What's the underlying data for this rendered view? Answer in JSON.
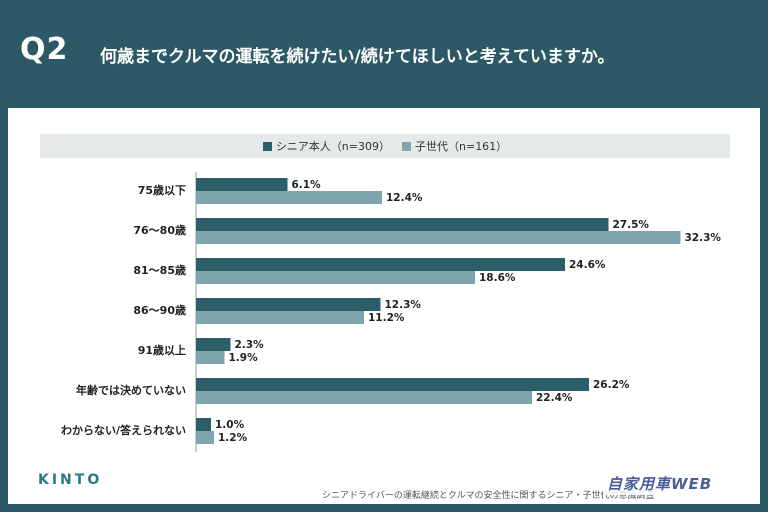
{
  "header": {
    "q_label": "Q2",
    "title": "何歳までクルマの運転を続けたい/続けてほしいと考えていますか。"
  },
  "colors": {
    "background": "#2c5965",
    "series1": "#2a5f67",
    "series2": "#7fa5ad"
  },
  "chart_data": {
    "type": "bar",
    "orientation": "horizontal",
    "categories": [
      "75歳以下",
      "76～80歳",
      "81～85歳",
      "86～90歳",
      "91歳以上",
      "年齢では決めていない",
      "わからない/答えられない"
    ],
    "series": [
      {
        "name": "シニア本人（n=309）",
        "values": [
          6.1,
          27.5,
          24.6,
          12.3,
          2.3,
          26.2,
          1.0
        ]
      },
      {
        "name": "子世代（n=161）",
        "values": [
          12.4,
          32.3,
          18.6,
          11.2,
          1.9,
          22.4,
          1.2
        ]
      }
    ],
    "value_suffix": "%",
    "legend_position": "top",
    "grid": false
  },
  "footer": {
    "logo": "KINTO",
    "footnote": "シニアドライバーの運転継続とクルマの安全性に関するシニア・子世代の意識調査",
    "watermark": "自家用車WEB"
  }
}
